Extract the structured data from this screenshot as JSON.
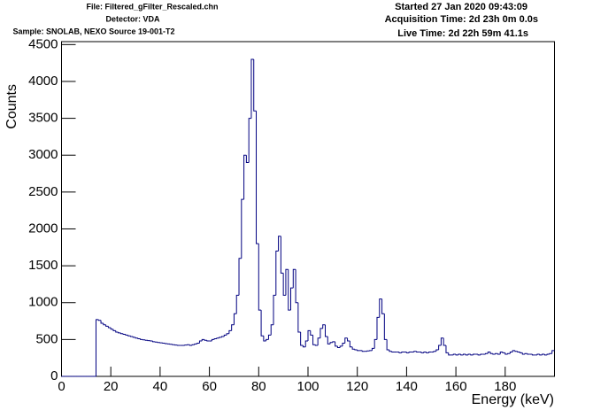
{
  "chart_data": {
    "type": "histogram",
    "header_left": [
      "File: Filtered_gFilter_Rescaled.chn",
      "Detector: VDA",
      "Sample: SNOLAB, NEXO Source 19-001-T2"
    ],
    "header_right": [
      "Started 27 Jan 2020 09:43:09",
      "Acquisition Time: 2d 23h 0m 0.0s",
      "Live Time: 2d 22h 59m 41.1s"
    ],
    "x_label": "Energy (keV)",
    "y_label": "Counts",
    "color": "#000080",
    "xlim": [
      0,
      200
    ],
    "xticks": [
      0,
      20,
      40,
      60,
      80,
      100,
      120,
      140,
      160,
      180
    ],
    "ylim": [
      0,
      4540
    ],
    "yticks": [
      0,
      500,
      1000,
      1500,
      2000,
      2500,
      3000,
      3500,
      4000,
      4500
    ],
    "bins": [
      0,
      1,
      2,
      3,
      4,
      5,
      6,
      7,
      8,
      9,
      10,
      11,
      12,
      13,
      14,
      15,
      16,
      17,
      18,
      19,
      20,
      21,
      22,
      23,
      24,
      25,
      26,
      27,
      28,
      29,
      30,
      31,
      32,
      33,
      34,
      35,
      36,
      37,
      38,
      39,
      40,
      41,
      42,
      43,
      44,
      45,
      46,
      47,
      48,
      49,
      50,
      51,
      52,
      53,
      54,
      55,
      56,
      57,
      58,
      59,
      60,
      61,
      62,
      63,
      64,
      65,
      66,
      67,
      68,
      69,
      70,
      71,
      72,
      73,
      74,
      75,
      76,
      77,
      78,
      79,
      80,
      81,
      82,
      83,
      84,
      85,
      86,
      87,
      88,
      89,
      90,
      91,
      92,
      93,
      94,
      95,
      96,
      97,
      98,
      99,
      100,
      101,
      102,
      103,
      104,
      105,
      106,
      107,
      108,
      109,
      110,
      111,
      112,
      113,
      114,
      115,
      116,
      117,
      118,
      119,
      120,
      121,
      122,
      123,
      124,
      125,
      126,
      127,
      128,
      129,
      130,
      131,
      132,
      133,
      134,
      135,
      136,
      137,
      138,
      139,
      140,
      141,
      142,
      143,
      144,
      145,
      146,
      147,
      148,
      149,
      150,
      151,
      152,
      153,
      154,
      155,
      156,
      157,
      158,
      159,
      160,
      161,
      162,
      163,
      164,
      165,
      166,
      167,
      168,
      169,
      170,
      171,
      172,
      173,
      174,
      175,
      176,
      177,
      178,
      179,
      180,
      181,
      182,
      183,
      184,
      185,
      186,
      187,
      188,
      189,
      190,
      191,
      192,
      193,
      194,
      195,
      196,
      197,
      198,
      199,
      200
    ],
    "counts": [
      0,
      0,
      0,
      0,
      0,
      0,
      0,
      0,
      0,
      0,
      0,
      0,
      0,
      0,
      770,
      760,
      720,
      700,
      680,
      660,
      640,
      620,
      600,
      590,
      580,
      570,
      560,
      550,
      540,
      530,
      520,
      510,
      500,
      495,
      490,
      485,
      480,
      470,
      465,
      460,
      455,
      450,
      445,
      440,
      435,
      430,
      425,
      420,
      420,
      420,
      425,
      430,
      420,
      430,
      440,
      450,
      480,
      500,
      490,
      480,
      480,
      500,
      510,
      520,
      530,
      540,
      560,
      580,
      620,
      700,
      850,
      1100,
      1600,
      2400,
      3000,
      2900,
      3500,
      4300,
      3600,
      1800,
      900,
      550,
      480,
      500,
      560,
      700,
      1100,
      1700,
      1900,
      1400,
      1100,
      1450,
      900,
      1200,
      1450,
      1000,
      600,
      420,
      400,
      480,
      620,
      560,
      430,
      420,
      520,
      650,
      700,
      540,
      440,
      460,
      470,
      410,
      390,
      410,
      450,
      520,
      480,
      400,
      370,
      360,
      350,
      350,
      340,
      340,
      345,
      350,
      380,
      500,
      800,
      1050,
      850,
      500,
      360,
      340,
      330,
      330,
      330,
      320,
      330,
      330,
      320,
      330,
      330,
      340,
      330,
      330,
      320,
      330,
      320,
      330,
      330,
      340,
      360,
      420,
      520,
      420,
      320,
      290,
      290,
      300,
      290,
      300,
      290,
      300,
      290,
      300,
      290,
      300,
      300,
      290,
      300,
      300,
      310,
      330,
      310,
      300,
      310,
      300,
      330,
      320,
      300,
      310,
      330,
      350,
      340,
      330,
      320,
      300,
      310,
      300,
      300,
      290,
      290,
      300,
      290,
      300,
      290,
      300,
      310,
      350
    ]
  }
}
